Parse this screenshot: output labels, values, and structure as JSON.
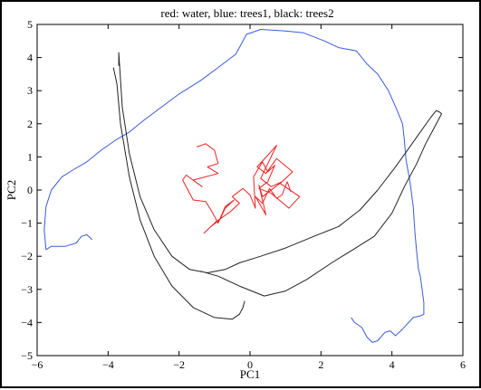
{
  "chart_data": {
    "type": "line",
    "title": "red: water, blue: trees1, black: trees2",
    "xlabel": "PC1",
    "ylabel": "PC2",
    "xlim": [
      -6,
      6
    ],
    "ylim": [
      -5,
      5
    ],
    "xticks": [
      -6,
      -4,
      -2,
      0,
      2,
      4,
      6
    ],
    "yticks": [
      -5,
      -4,
      -3,
      -2,
      -1,
      0,
      1,
      2,
      3,
      4,
      5
    ],
    "grid": false,
    "legend": "none",
    "series": [
      {
        "color": "#3b5bdb",
        "x": [
          -4.45,
          -4.6,
          -4.75,
          -4.9,
          -5.2,
          -5.6,
          -5.75,
          -5.8,
          -5.75,
          -5.6,
          -5.3,
          -5,
          -4.6,
          -4.2,
          -3.8,
          -3.4,
          -3,
          -2.5,
          -2,
          -1.4,
          -0.9,
          -0.4,
          -0.1,
          0.3,
          1,
          1.5,
          2.1,
          2.5,
          3,
          3.3,
          3.6,
          3.9,
          4.15,
          4.3,
          4.35,
          4.4,
          4.5,
          4.6,
          4.65,
          4.7,
          4.75,
          4.8,
          4.85,
          4.9,
          4.9,
          4.8,
          4.6,
          4.3,
          4.1,
          3.95,
          3.8,
          3.6,
          3.45,
          3.3,
          3.15,
          2.95,
          2.85
        ],
        "y": [
          -1.5,
          -1.35,
          -1.4,
          -1.6,
          -1.7,
          -1.7,
          -1.8,
          -1.2,
          -0.5,
          0,
          0.4,
          0.6,
          0.85,
          1.2,
          1.5,
          1.75,
          2.1,
          2.5,
          2.9,
          3.3,
          3.7,
          4.1,
          4.7,
          4.85,
          4.8,
          4.75,
          4.5,
          4.3,
          4.2,
          3.8,
          3.5,
          3,
          2.4,
          2,
          1.5,
          0.9,
          0.3,
          -0.5,
          -1.3,
          -1.9,
          -2.4,
          -2.6,
          -3,
          -3.4,
          -3.75,
          -3.8,
          -3.85,
          -4.2,
          -4.4,
          -4.25,
          -4.3,
          -4.55,
          -4.6,
          -4.45,
          -4.15,
          -4,
          -3.85
        ]
      },
      {
        "color": "#222222",
        "x": [
          -3.7,
          -3.7,
          -3.6,
          -3.4,
          -3.1,
          -2.7,
          -2.2,
          -1.7,
          -1.2,
          -0.7,
          -0.3,
          0.3,
          1,
          1.8,
          2.5,
          3.1,
          3.6,
          4.1,
          4.5,
          4.8,
          5.1,
          5.25,
          5.35,
          5.4,
          5.2,
          4.95,
          4.7,
          4.35,
          4,
          3.5,
          2.9,
          2.3,
          1.6,
          1,
          0.4,
          -0.3,
          -0.9,
          -1.4
        ],
        "y": [
          3.75,
          4.15,
          2.5,
          1.1,
          -0.2,
          -1.2,
          -2,
          -2.4,
          -2.5,
          -2.4,
          -2.2,
          -2,
          -1.75,
          -1.4,
          -1.1,
          -0.6,
          0,
          0.7,
          1.3,
          1.75,
          2.2,
          2.4,
          2.35,
          2.3,
          1.9,
          1.4,
          0.8,
          0.1,
          -0.7,
          -1.4,
          -1.8,
          -2.2,
          -2.7,
          -3.05,
          -3.2,
          -2.9,
          -2.6,
          -2.45
        ]
      },
      {
        "color": "#222222",
        "x": [
          -3.85,
          -3.75,
          -3.65,
          -3.4,
          -3.1,
          -2.7,
          -2.2,
          -1.6,
          -1,
          -0.5,
          -0.3,
          -0.2,
          -0.15
        ],
        "y": [
          3.7,
          3.2,
          2,
          0.4,
          -0.9,
          -2,
          -2.9,
          -3.55,
          -3.85,
          -3.9,
          -3.75,
          -3.55,
          -3.35
        ]
      },
      {
        "color": "#ee2222",
        "x": [
          -1.5,
          -1.25,
          -1,
          -0.9,
          -1.2,
          -0.9,
          -1.6,
          -1.35,
          -1.8,
          -1.9,
          -1.6,
          -1.25,
          -1.1,
          -0.9,
          -0.7,
          -0.45,
          -0.7,
          -0.85,
          -1.1,
          -1.3,
          -0.95,
          -0.55,
          -0.3,
          -0.5,
          -0.2,
          0,
          0.15,
          0.1,
          0.35,
          0.5,
          0.7,
          0.5,
          0.25,
          0.6,
          1.1,
          1.4,
          0.85,
          1.2,
          0.75,
          0.45,
          0.2,
          0.5,
          0.75,
          0.3,
          0.6,
          0.9,
          0.35,
          0.25,
          0.45,
          0.15,
          0.35,
          0.55,
          0.75,
          0.9,
          1.05,
          1.15
        ],
        "y": [
          1.3,
          1.4,
          1.2,
          0.8,
          0.7,
          0.5,
          0.3,
          0.1,
          0.45,
          0.3,
          -0.3,
          -0.35,
          -0.6,
          -1,
          -0.5,
          -0.3,
          -0.55,
          -0.9,
          -1.1,
          -1.3,
          -0.95,
          -0.65,
          -0.4,
          -0.2,
          0.05,
          -0.15,
          -0.55,
          0.4,
          0.85,
          0.55,
          0.75,
          0.25,
          0.05,
          -0.1,
          -0.55,
          -0.2,
          0.2,
          0.55,
          0.95,
          0.5,
          0.7,
          1.05,
          1.35,
          0.35,
          0.1,
          0.25,
          -0.2,
          0.15,
          -0.75,
          -0.2,
          -0.4,
          0.05,
          -0.25,
          -0.15,
          0.25,
          -0.05
        ]
      }
    ]
  }
}
